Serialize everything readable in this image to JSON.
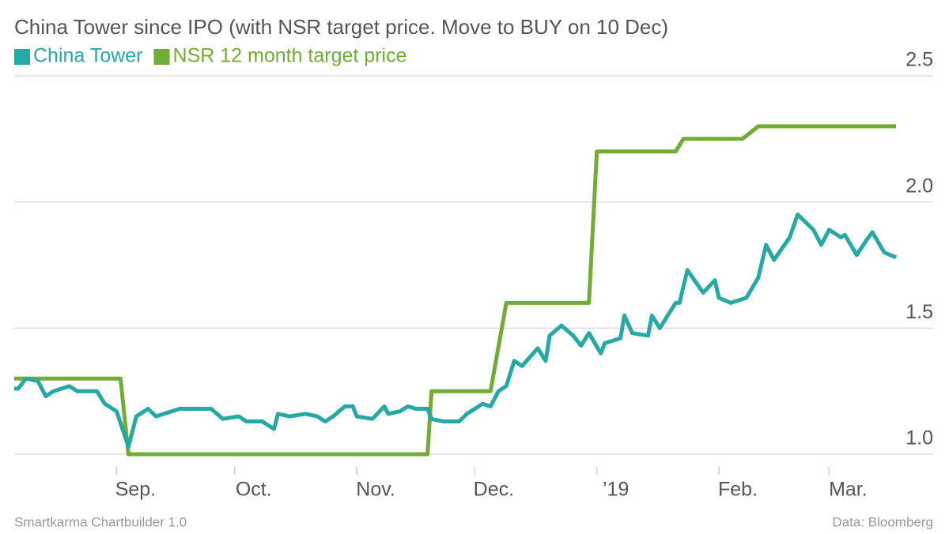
{
  "chart_data": {
    "type": "line",
    "title": "China Tower since IPO (with NSR target price. Move to BUY on 10 Dec)",
    "credit": "Smartkarma Chartbuilder 1.0",
    "source": "Data: Bloomberg",
    "series": [
      {
        "name": "China Tower",
        "color": "#26a9a5",
        "x": [
          -26,
          -25,
          -23,
          -20,
          -18,
          -16,
          -12,
          -10,
          -5,
          -3,
          0,
          3,
          5,
          8,
          10,
          16,
          24,
          27,
          31,
          33,
          37,
          40,
          41,
          44,
          48,
          51,
          53,
          55,
          58,
          60,
          61,
          65,
          68,
          69,
          72,
          74,
          76,
          79,
          80,
          83,
          87,
          89,
          93,
          95,
          97,
          99,
          101,
          103,
          107,
          109,
          110,
          113,
          116,
          118,
          120,
          123,
          124,
          128,
          129,
          131,
          135,
          136,
          138,
          142,
          143,
          145,
          149,
          152,
          153,
          156,
          160,
          163,
          165,
          167,
          171,
          173,
          177,
          179,
          181,
          184,
          185,
          188,
          191,
          192,
          195,
          198
        ],
        "values": [
          1.26,
          1.26,
          1.3,
          1.29,
          1.23,
          1.25,
          1.27,
          1.25,
          1.25,
          1.2,
          1.17,
          1.03,
          1.15,
          1.18,
          1.15,
          1.18,
          1.18,
          1.14,
          1.15,
          1.13,
          1.13,
          1.1,
          1.16,
          1.15,
          1.16,
          1.15,
          1.13,
          1.15,
          1.19,
          1.19,
          1.15,
          1.14,
          1.19,
          1.16,
          1.17,
          1.19,
          1.18,
          1.18,
          1.14,
          1.13,
          1.13,
          1.16,
          1.2,
          1.19,
          1.25,
          1.27,
          1.37,
          1.35,
          1.42,
          1.37,
          1.47,
          1.51,
          1.47,
          1.43,
          1.48,
          1.4,
          1.44,
          1.46,
          1.55,
          1.48,
          1.47,
          1.55,
          1.5,
          1.6,
          1.6,
          1.73,
          1.64,
          1.69,
          1.62,
          1.6,
          1.62,
          1.7,
          1.83,
          1.77,
          1.86,
          1.95,
          1.89,
          1.83,
          1.89,
          1.86,
          1.87,
          1.79,
          1.86,
          1.88,
          1.8,
          1.78
        ]
      },
      {
        "name": "NSR 12 month target price",
        "color": "#72ab35",
        "x": [
          -26,
          1,
          3,
          79,
          80,
          95,
          99,
          120,
          122,
          142,
          144,
          159,
          163,
          198
        ],
        "values": [
          1.3,
          1.3,
          1.0,
          1.0,
          1.25,
          1.25,
          1.6,
          1.6,
          2.2,
          2.2,
          2.25,
          2.25,
          2.3,
          2.3
        ]
      }
    ],
    "xlim": [
      -26,
      198
    ],
    "xticks": [
      {
        "value": 0,
        "label": "Sep."
      },
      {
        "value": 30,
        "label": "Oct."
      },
      {
        "value": 61,
        "label": "Nov."
      },
      {
        "value": 91,
        "label": "Dec."
      },
      {
        "value": 122,
        "label": "’19"
      },
      {
        "value": 153,
        "label": "Feb."
      },
      {
        "value": 181,
        "label": "Mar."
      }
    ],
    "ylim": [
      0.95,
      2.5
    ],
    "yticks": [
      {
        "value": 1,
        "label": "1.0"
      },
      1.5,
      {
        "value": 2,
        "label": "2.0"
      },
      2.5
    ],
    "grid": true
  }
}
